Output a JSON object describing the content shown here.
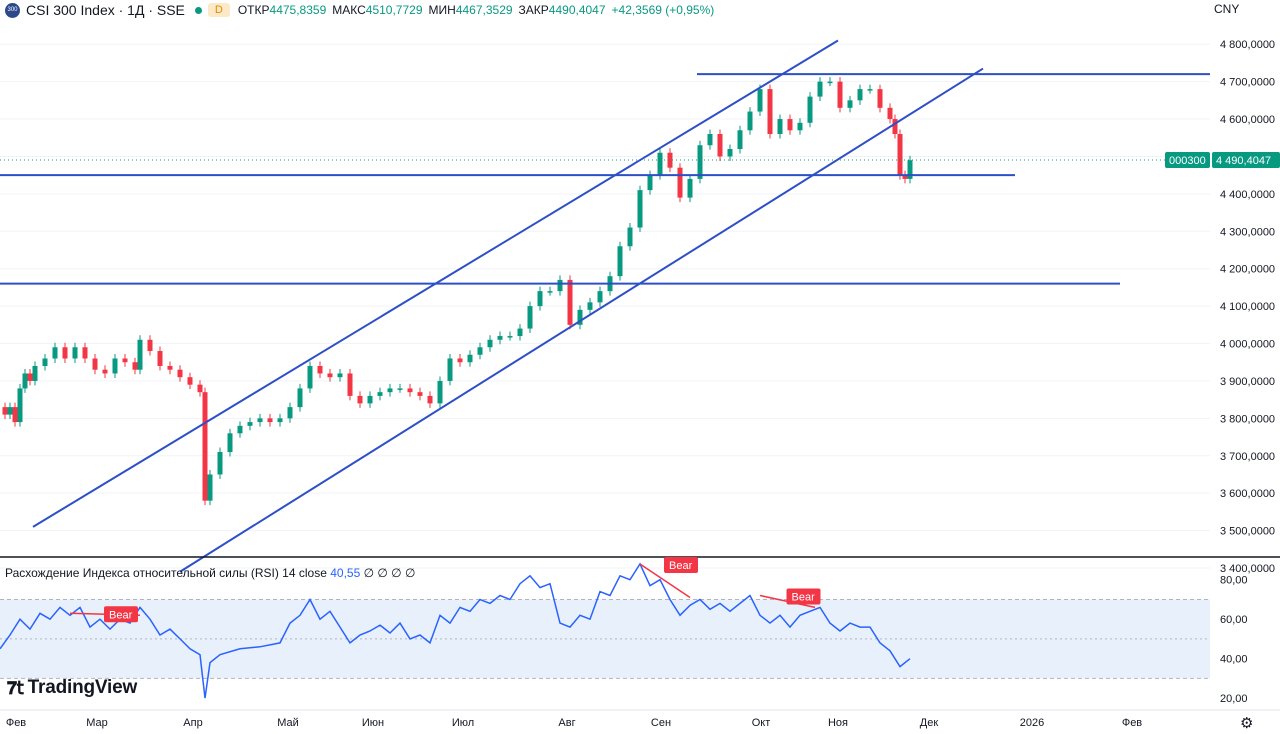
{
  "header": {
    "logo_text": "300",
    "title": "CSI 300 Index · 1Д · SSE",
    "interval_badge": "D",
    "open_label": "ОТКР",
    "open_value": "4475,8359",
    "high_label": "МАКС",
    "high_value": "4510,7729",
    "low_label": "МИН",
    "low_value": "4467,3529",
    "close_label": "ЗАКР",
    "close_value": "4490,4047",
    "change": "+42,3569 (+0,95%)"
  },
  "currency": "CNY",
  "price_tag": {
    "symbol": "000300",
    "price": "4 490,4047"
  },
  "rsi_header": {
    "label": "Расхождение Индекса относительной силы (RSI) 14 close",
    "value": "40,55",
    "zeros": "∅ ∅ ∅ ∅"
  },
  "brand": "TradingView",
  "icons": {
    "settings": "gear-icon",
    "logo": "tradingview-logo-icon"
  },
  "colors": {
    "up": "#089981",
    "down": "#f23645",
    "trendline": "#2d4fc7",
    "rsi": "#2962ff",
    "bear": "#f23645",
    "rsi_band": "#e8f0fb"
  },
  "chart_data": [
    {
      "type": "candlestick",
      "title": "CSI 300 Index · 1Д · SSE",
      "y_range": [
        3400,
        4830
      ],
      "y_ticks": [
        3400,
        3500,
        3600,
        3700,
        3800,
        3900,
        4000,
        4100,
        4200,
        4300,
        4400,
        4500,
        4600,
        4700,
        4800
      ],
      "y_tick_labels": [
        "3 400,0000",
        "3 500,0000",
        "3 600,0000",
        "3 700,0000",
        "3 800,0000",
        "3 900,0000",
        "4 000,0000",
        "4 100,0000",
        "4 200,0000",
        "4 300,0000",
        "4 400,0000",
        "4 500,0000",
        "4 600,0000",
        "4 700,0000",
        "4 800,0000"
      ],
      "x_labels": [
        "Фев",
        "Мар",
        "Апр",
        "Май",
        "Июн",
        "Июл",
        "Авг",
        "Сен",
        "Окт",
        "Ноя",
        "Дек",
        "2026",
        "Фев"
      ],
      "last_price": 4490.4047,
      "series_close_path": [
        [
          0,
          3830
        ],
        [
          5,
          3810
        ],
        [
          10,
          3830
        ],
        [
          15,
          3790
        ],
        [
          20,
          3880
        ],
        [
          25,
          3920
        ],
        [
          30,
          3900
        ],
        [
          35,
          3940
        ],
        [
          45,
          3960
        ],
        [
          55,
          3990
        ],
        [
          65,
          3960
        ],
        [
          75,
          3990
        ],
        [
          85,
          3960
        ],
        [
          95,
          3930
        ],
        [
          105,
          3920
        ],
        [
          115,
          3960
        ],
        [
          125,
          3950
        ],
        [
          135,
          3930
        ],
        [
          140,
          4010
        ],
        [
          150,
          3980
        ],
        [
          160,
          3940
        ],
        [
          170,
          3930
        ],
        [
          180,
          3910
        ],
        [
          190,
          3890
        ],
        [
          200,
          3870
        ],
        [
          205,
          3580
        ],
        [
          210,
          3650
        ],
        [
          220,
          3710
        ],
        [
          230,
          3760
        ],
        [
          240,
          3780
        ],
        [
          250,
          3790
        ],
        [
          260,
          3800
        ],
        [
          270,
          3790
        ],
        [
          280,
          3800
        ],
        [
          290,
          3830
        ],
        [
          300,
          3880
        ],
        [
          310,
          3940
        ],
        [
          320,
          3920
        ],
        [
          330,
          3910
        ],
        [
          340,
          3920
        ],
        [
          350,
          3860
        ],
        [
          360,
          3840
        ],
        [
          370,
          3860
        ],
        [
          380,
          3870
        ],
        [
          390,
          3880
        ],
        [
          400,
          3880
        ],
        [
          410,
          3870
        ],
        [
          420,
          3860
        ],
        [
          430,
          3840
        ],
        [
          440,
          3900
        ],
        [
          450,
          3960
        ],
        [
          460,
          3950
        ],
        [
          470,
          3970
        ],
        [
          480,
          3990
        ],
        [
          490,
          4010
        ],
        [
          500,
          4020
        ],
        [
          510,
          4020
        ],
        [
          520,
          4040
        ],
        [
          530,
          4100
        ],
        [
          540,
          4140
        ],
        [
          550,
          4140
        ],
        [
          560,
          4170
        ],
        [
          570,
          4050
        ],
        [
          580,
          4090
        ],
        [
          590,
          4110
        ],
        [
          600,
          4140
        ],
        [
          610,
          4180
        ],
        [
          620,
          4260
        ],
        [
          630,
          4310
        ],
        [
          640,
          4410
        ],
        [
          650,
          4450
        ],
        [
          660,
          4510
        ],
        [
          670,
          4470
        ],
        [
          680,
          4390
        ],
        [
          690,
          4440
        ],
        [
          700,
          4530
        ],
        [
          710,
          4560
        ],
        [
          720,
          4500
        ],
        [
          730,
          4520
        ],
        [
          740,
          4570
        ],
        [
          750,
          4620
        ],
        [
          760,
          4680
        ],
        [
          770,
          4560
        ],
        [
          780,
          4600
        ],
        [
          790,
          4570
        ],
        [
          800,
          4590
        ],
        [
          810,
          4660
        ],
        [
          820,
          4700
        ],
        [
          830,
          4700
        ],
        [
          840,
          4630
        ],
        [
          850,
          4650
        ],
        [
          860,
          4680
        ],
        [
          870,
          4680
        ],
        [
          880,
          4630
        ],
        [
          890,
          4600
        ],
        [
          895,
          4560
        ],
        [
          900,
          4450
        ],
        [
          905,
          4440
        ],
        [
          910,
          4490
        ]
      ],
      "trendlines": [
        {
          "name": "upper-channel",
          "from": [
            33,
            3510
          ],
          "to": [
            838,
            4810
          ]
        },
        {
          "name": "lower-channel",
          "from": [
            180,
            3390
          ],
          "to": [
            983,
            4735
          ]
        },
        {
          "name": "resistance-4720",
          "from": [
            697,
            4720
          ],
          "to": [
            1210,
            4720
          ]
        },
        {
          "name": "support-4450",
          "from": [
            0,
            4450
          ],
          "to": [
            1015,
            4450
          ]
        },
        {
          "name": "support-4160",
          "from": [
            0,
            4160
          ],
          "to": [
            1120,
            4160
          ]
        }
      ]
    },
    {
      "type": "line",
      "title": "Расхождение Индекса относительной силы (RSI) 14 close",
      "y_range": [
        15,
        90
      ],
      "y_ticks": [
        20,
        40,
        60,
        80
      ],
      "y_tick_labels": [
        "20,00",
        "40,00",
        "60,00",
        "80,00"
      ],
      "band": [
        30,
        70
      ],
      "midline": 50,
      "values": [
        [
          0,
          45
        ],
        [
          10,
          52
        ],
        [
          20,
          60
        ],
        [
          30,
          55
        ],
        [
          40,
          63
        ],
        [
          50,
          60
        ],
        [
          60,
          66
        ],
        [
          70,
          62
        ],
        [
          80,
          66
        ],
        [
          90,
          56
        ],
        [
          100,
          60
        ],
        [
          110,
          55
        ],
        [
          120,
          60
        ],
        [
          130,
          58
        ],
        [
          140,
          66
        ],
        [
          150,
          60
        ],
        [
          160,
          52
        ],
        [
          170,
          55
        ],
        [
          180,
          50
        ],
        [
          190,
          45
        ],
        [
          200,
          42
        ],
        [
          205,
          20
        ],
        [
          210,
          38
        ],
        [
          220,
          42
        ],
        [
          240,
          45
        ],
        [
          260,
          46
        ],
        [
          280,
          48
        ],
        [
          290,
          58
        ],
        [
          300,
          62
        ],
        [
          310,
          70
        ],
        [
          320,
          60
        ],
        [
          330,
          64
        ],
        [
          340,
          56
        ],
        [
          350,
          48
        ],
        [
          360,
          52
        ],
        [
          370,
          54
        ],
        [
          380,
          57
        ],
        [
          390,
          53
        ],
        [
          400,
          58
        ],
        [
          410,
          50
        ],
        [
          420,
          52
        ],
        [
          430,
          48
        ],
        [
          440,
          62
        ],
        [
          450,
          58
        ],
        [
          460,
          66
        ],
        [
          470,
          64
        ],
        [
          480,
          70
        ],
        [
          490,
          68
        ],
        [
          500,
          72
        ],
        [
          510,
          70
        ],
        [
          520,
          78
        ],
        [
          530,
          82
        ],
        [
          540,
          76
        ],
        [
          550,
          78
        ],
        [
          560,
          58
        ],
        [
          570,
          56
        ],
        [
          580,
          62
        ],
        [
          590,
          60
        ],
        [
          600,
          74
        ],
        [
          610,
          72
        ],
        [
          620,
          82
        ],
        [
          630,
          80
        ],
        [
          640,
          88
        ],
        [
          650,
          77
        ],
        [
          660,
          80
        ],
        [
          670,
          70
        ],
        [
          680,
          62
        ],
        [
          690,
          67
        ],
        [
          700,
          70
        ],
        [
          710,
          65
        ],
        [
          720,
          68
        ],
        [
          730,
          64
        ],
        [
          740,
          68
        ],
        [
          750,
          72
        ],
        [
          760,
          62
        ],
        [
          770,
          58
        ],
        [
          780,
          62
        ],
        [
          790,
          56
        ],
        [
          800,
          62
        ],
        [
          810,
          64
        ],
        [
          820,
          66
        ],
        [
          830,
          58
        ],
        [
          840,
          54
        ],
        [
          850,
          58
        ],
        [
          860,
          56
        ],
        [
          870,
          56
        ],
        [
          880,
          48
        ],
        [
          890,
          44
        ],
        [
          900,
          36
        ],
        [
          910,
          40
        ]
      ],
      "divergences": [
        {
          "label": "Bear",
          "from": [
            70,
            63
          ],
          "to": [
            140,
            62
          ]
        },
        {
          "label": "Bear",
          "from": [
            640,
            88
          ],
          "to": [
            690,
            71
          ]
        },
        {
          "label": "Bear",
          "from": [
            760,
            72
          ],
          "to": [
            815,
            66
          ]
        }
      ]
    }
  ]
}
